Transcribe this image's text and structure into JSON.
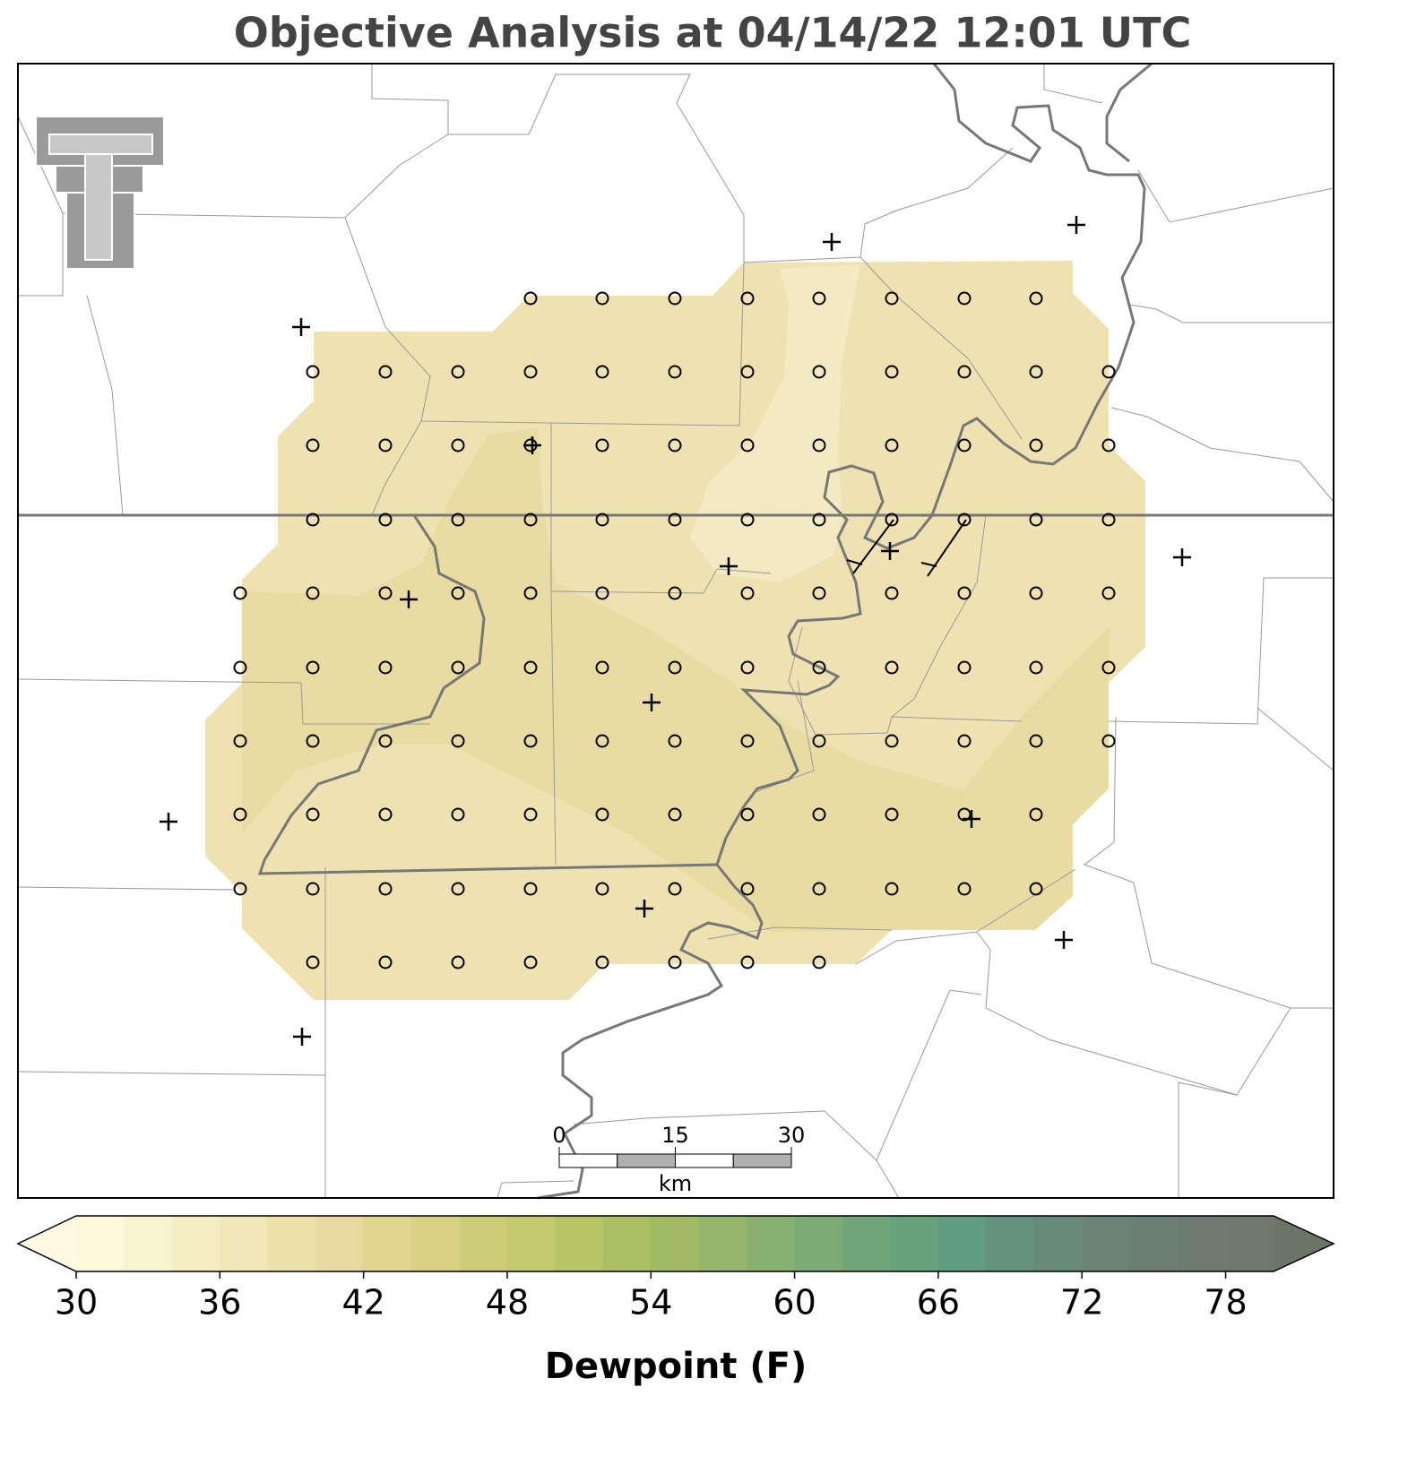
{
  "title": "Objective Analysis at 04/14/22 12:01 UTC",
  "map": {
    "scale_bar": {
      "ticks": [
        0,
        15,
        30
      ],
      "unit": "km"
    }
  },
  "colorbar": {
    "label": "Dewpoint (F)",
    "lim": [
      30,
      80
    ],
    "ticks": [
      30,
      36,
      42,
      48,
      54,
      60,
      66,
      72,
      78
    ],
    "bounds": [
      30,
      32,
      34,
      36,
      38,
      40,
      42,
      44,
      46,
      48,
      50,
      52,
      54,
      56,
      58,
      60,
      62,
      64,
      66,
      68,
      70,
      72,
      74,
      76,
      78,
      80
    ],
    "colors": [
      "#fdf8dc",
      "#f9f3d0",
      "#f5edc4",
      "#f1e6b7",
      "#ede0ab",
      "#e8da9f",
      "#e2d592",
      "#d9d285",
      "#cdcd79",
      "#c2c96e",
      "#b7c466",
      "#abbf64",
      "#a0ba66",
      "#94b56b",
      "#88b070",
      "#7dab75",
      "#72a679",
      "#68a27c",
      "#609d7f",
      "#63917c",
      "#688a78",
      "#6b8475",
      "#6d7f72",
      "#6e7b6f",
      "#6f786c"
    ],
    "under_color": "#fefbe4",
    "over_color": "#6c7466"
  }
}
